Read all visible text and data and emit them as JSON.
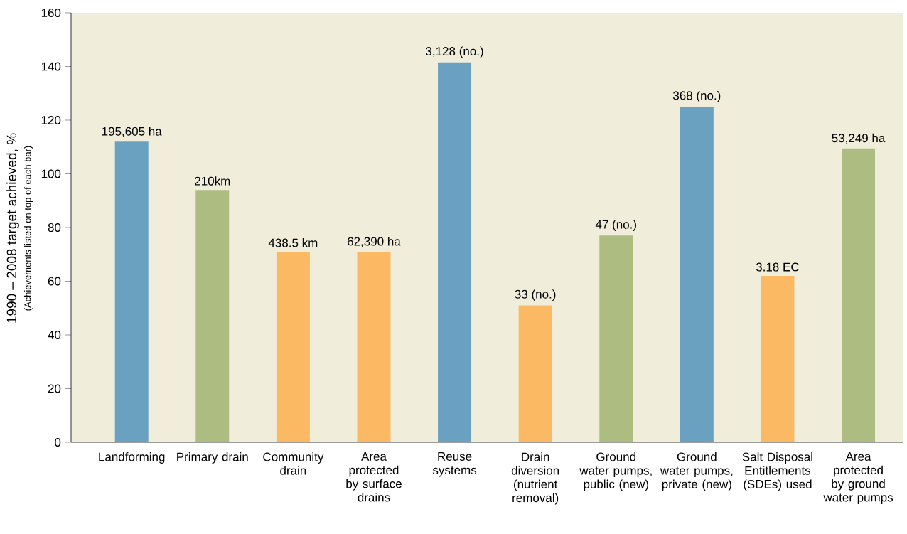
{
  "chart_data": {
    "type": "bar",
    "ylabel": "1990 – 2008 target achieved, %",
    "annotations": [
      "(Achievements listed on top of each bar)",
      {
        "text": "195,605 ha",
        "x": "Landforming",
        "y": 112
      },
      {
        "text": "210km",
        "x": "Primary drain",
        "y": 94
      },
      {
        "text": "438.5 km",
        "x": "Community drain",
        "y": 71
      },
      {
        "text": "62,390 ha",
        "x": "Area protected by surface drains",
        "y": 71
      },
      {
        "text": "3,128 (no.)",
        "x": "Reuse systems",
        "y": 141.5
      },
      {
        "text": "33 (no.)",
        "x": "Drain diversion (nutrient removal)",
        "y": 51
      },
      {
        "text": "47 (no.)",
        "x": "Ground water pumps, public (new)",
        "y": 77
      },
      {
        "text": "368 (no.)",
        "x": "Ground water pumps, private (new)",
        "y": 125
      },
      {
        "text": "3.18 EC",
        "x": "Salt Disposal Entitlements (SDEs) used",
        "y": 62
      },
      {
        "text": "53,249 ha",
        "x": "Area protected by ground water pumps",
        "y": 109.5
      }
    ],
    "categories": [
      "Landforming",
      "Primary drain",
      "Community drain",
      "Area protected by surface drains",
      "Reuse systems",
      "Drain diversion (nutrient removal)",
      "Ground water pumps, public (new)",
      "Ground water pumps, private (new)",
      "Salt Disposal Entitlements (SDEs) used",
      "Area protected by ground water pumps"
    ],
    "values": [
      112,
      94,
      71,
      71,
      141.5,
      51,
      77,
      125,
      62,
      109.5
    ],
    "colors": [
      "#6aa1c1",
      "#adbc80",
      "#fbb963",
      "#fbb963",
      "#6aa1c1",
      "#fbb963",
      "#adbc80",
      "#6aa1c1",
      "#fbb963",
      "#adbc80"
    ],
    "ylim": [
      0,
      160
    ],
    "yticks": [
      0,
      20,
      40,
      60,
      80,
      100,
      120,
      140,
      160
    ],
    "grid": false
  }
}
